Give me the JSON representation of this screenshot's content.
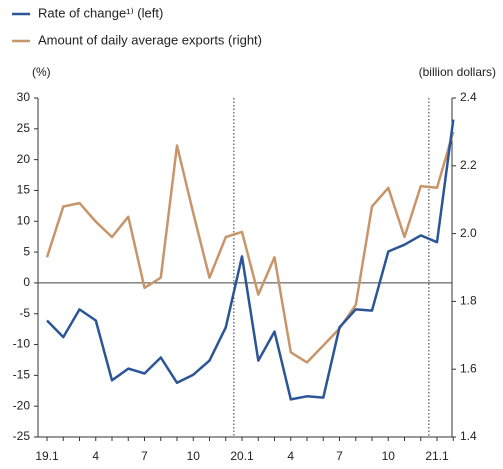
{
  "chart_data": {
    "type": "line",
    "categories": [
      "19.1",
      null,
      null,
      "4",
      null,
      null,
      "7",
      null,
      null,
      "10",
      null,
      null,
      "20.1",
      null,
      null,
      "4",
      null,
      null,
      "7",
      null,
      null,
      "10",
      null,
      null,
      "21.1",
      null
    ],
    "series": [
      {
        "name": "Rate of change¹⁾ (left)",
        "color": "#2c5597",
        "axis": "y",
        "values": [
          -6.1,
          -8.8,
          -4.3,
          -6.1,
          -15.8,
          -13.9,
          -14.7,
          -12.1,
          -16.2,
          -14.9,
          -12.6,
          -7.2,
          4.3,
          -12.6,
          -7.9,
          -18.9,
          -18.4,
          -18.6,
          -7.2,
          -4.3,
          -4.5,
          5.1,
          6.2,
          7.7,
          6.6,
          26.5
        ]
      },
      {
        "name": "Amount of daily average exports (right)",
        "color": "#c8956a",
        "axis": "y2",
        "values": [
          1.93,
          2.08,
          2.09,
          2.035,
          1.99,
          2.05,
          1.84,
          1.87,
          2.26,
          2.06,
          1.87,
          1.99,
          2.005,
          1.82,
          1.93,
          1.65,
          1.62,
          1.67,
          1.72,
          1.79,
          2.08,
          2.135,
          1.99,
          2.14,
          2.135,
          2.3
        ]
      }
    ],
    "ylabel": "(%)",
    "y2label": "(billion dollars)",
    "ylim": [
      -25,
      30
    ],
    "yticks": [
      -25,
      -20,
      -15,
      -10,
      -5,
      0,
      5,
      10,
      15,
      20,
      25,
      30
    ],
    "y2lim": [
      1.4,
      2.4
    ],
    "y2ticks": [
      1.4,
      1.6,
      1.8,
      {
        "value": 2,
        "label": "2.0"
      },
      2.2,
      2.4
    ]
  }
}
